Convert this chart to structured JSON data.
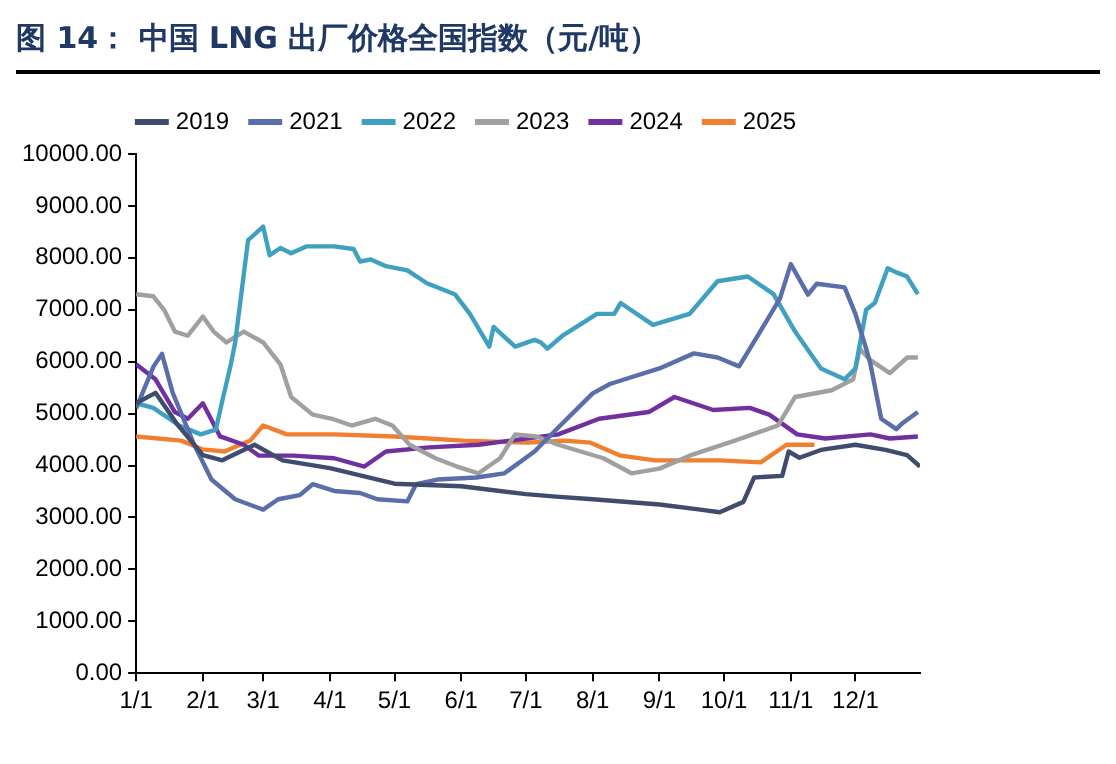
{
  "chart_data": {
    "type": "line",
    "title": "图 14：  中国 LNG 出厂价格全国指数（元/吨）",
    "xlim": [
      "--01-01",
      "--12-31"
    ],
    "xticks": [
      {
        "value": "--01-01",
        "label": "1/1"
      },
      {
        "value": "--02-01",
        "label": "2/1"
      },
      {
        "value": "--03-01",
        "label": "3/1"
      },
      {
        "value": "--04-01",
        "label": "4/1"
      },
      {
        "value": "--05-01",
        "label": "5/1"
      },
      {
        "value": "--06-01",
        "label": "6/1"
      },
      {
        "value": "--07-01",
        "label": "7/1"
      },
      {
        "value": "--08-01",
        "label": "8/1"
      },
      {
        "value": "--09-01",
        "label": "9/1"
      },
      {
        "value": "--10-01",
        "label": "10/1"
      },
      {
        "value": "--11-01",
        "label": "11/1"
      },
      {
        "value": "--12-01",
        "label": "12/1"
      }
    ],
    "ylim": [
      0,
      10000
    ],
    "yticks": [
      {
        "value": 0,
        "label": "0.00"
      },
      {
        "value": 1000,
        "label": "1000.00"
      },
      {
        "value": 2000,
        "label": "2000.00"
      },
      {
        "value": 3000,
        "label": "3000.00"
      },
      {
        "value": 4000,
        "label": "4000.00"
      },
      {
        "value": 5000,
        "label": "5000.00"
      },
      {
        "value": 6000,
        "label": "6000.00"
      },
      {
        "value": 7000,
        "label": "7000.00"
      },
      {
        "value": 8000,
        "label": "8000.00"
      },
      {
        "value": 9000,
        "label": "9000.00"
      },
      {
        "value": 10000,
        "label": "10000.00"
      }
    ],
    "grid": false,
    "legend": "top",
    "series": [
      {
        "name": "2019",
        "color": "#3f4c6e",
        "x": [
          "--01-01",
          "--01-10",
          "--01-20",
          "--02-01",
          "--02-10",
          "--02-25",
          "--03-10",
          "--04-01",
          "--05-01",
          "--06-01",
          "--07-01",
          "--07-15",
          "--08-01",
          "--09-01",
          "--09-20",
          "--09-29",
          "--10-10",
          "--10-15",
          "--10-28",
          "--10-31",
          "--11-05",
          "--11-15",
          "--12-01",
          "--12-15",
          "--12-25",
          "--12-31"
        ],
        "values": [
          5200,
          5400,
          4800,
          4200,
          4100,
          4400,
          4100,
          3950,
          3650,
          3600,
          3450,
          3400,
          3350,
          3250,
          3150,
          3100,
          3300,
          3770,
          3800,
          4270,
          4150,
          4300,
          4400,
          4300,
          4200,
          3980
        ]
      },
      {
        "name": "2021",
        "color": "#5a6eaa",
        "x": [
          "--01-01",
          "--01-05",
          "--01-09",
          "--01-13",
          "--01-18",
          "--01-28",
          "--02-05",
          "--02-16",
          "--03-01",
          "--03-08",
          "--03-18",
          "--03-24",
          "--04-03",
          "--04-15",
          "--04-23",
          "--05-07",
          "--05-11",
          "--05-21",
          "--06-08",
          "--06-21",
          "--07-05",
          "--07-15",
          "--08-01",
          "--08-09",
          "--09-01",
          "--09-17",
          "--09-28",
          "--10-08",
          "--10-13",
          "--10-21",
          "--10-27",
          "--11-01",
          "--11-09",
          "--11-13",
          "--11-26",
          "--12-01",
          "--12-06",
          "--12-08",
          "--12-13",
          "--12-20",
          "--12-23",
          "--12-30"
        ],
        "values": [
          5100,
          5500,
          5900,
          6150,
          5400,
          4400,
          3730,
          3350,
          3150,
          3350,
          3430,
          3640,
          3510,
          3470,
          3350,
          3310,
          3640,
          3730,
          3770,
          3850,
          4270,
          4690,
          5390,
          5570,
          5870,
          6160,
          6080,
          5910,
          6250,
          6800,
          7220,
          7880,
          7290,
          7500,
          7430,
          6920,
          6250,
          5950,
          4900,
          4700,
          4820,
          5030
        ]
      },
      {
        "name": "2022",
        "color": "#3fa0c0",
        "x": [
          "--01-01",
          "--01-09",
          "--01-21",
          "--01-31",
          "--02-07",
          "--02-10",
          "--02-14",
          "--02-16",
          "--02-22",
          "--03-01",
          "--03-04",
          "--03-09",
          "--03-14",
          "--03-21",
          "--04-03",
          "--04-12",
          "--04-15",
          "--04-20",
          "--04-27",
          "--05-07",
          "--05-16",
          "--05-29",
          "--06-05",
          "--06-14",
          "--06-16",
          "--06-26",
          "--07-05",
          "--07-08",
          "--07-11",
          "--07-18",
          "--07-21",
          "--08-03",
          "--08-11",
          "--08-14",
          "--08-29",
          "--09-15",
          "--09-28",
          "--10-12",
          "--10-24",
          "--11-03",
          "--11-15",
          "--11-26",
          "--12-01",
          "--12-06",
          "--12-10",
          "--12-16",
          "--12-20",
          "--12-25",
          "--12-30"
        ],
        "values": [
          5200,
          5110,
          4770,
          4600,
          4690,
          5240,
          5950,
          6370,
          8340,
          8600,
          8050,
          8190,
          8090,
          8220,
          8220,
          8170,
          7930,
          7970,
          7840,
          7760,
          7510,
          7300,
          6920,
          6290,
          6670,
          6290,
          6420,
          6370,
          6250,
          6500,
          6580,
          6920,
          6920,
          7130,
          6710,
          6920,
          7550,
          7640,
          7300,
          6580,
          5870,
          5660,
          5870,
          7000,
          7130,
          7800,
          7720,
          7640,
          7300
        ]
      },
      {
        "name": "2023",
        "color": "#a0a0a0",
        "x": [
          "--01-01",
          "--01-09",
          "--01-14",
          "--01-19",
          "--01-25",
          "--02-01",
          "--02-06",
          "--02-12",
          "--02-20",
          "--03-01",
          "--03-09",
          "--03-14",
          "--03-24",
          "--04-02",
          "--04-11",
          "--04-22",
          "--04-30",
          "--05-08",
          "--05-20",
          "--05-30",
          "--06-09",
          "--06-19",
          "--06-26",
          "--07-06",
          "--07-16",
          "--08-06",
          "--08-19",
          "--09-01",
          "--09-15",
          "--10-06",
          "--10-26",
          "--11-03",
          "--11-20",
          "--11-30",
          "--12-03",
          "--12-08",
          "--12-17",
          "--12-25",
          "--12-30"
        ],
        "values": [
          7300,
          7260,
          7000,
          6580,
          6500,
          6870,
          6580,
          6370,
          6580,
          6370,
          5950,
          5320,
          4980,
          4900,
          4770,
          4900,
          4770,
          4400,
          4140,
          3980,
          3850,
          4140,
          4600,
          4560,
          4400,
          4140,
          3850,
          3940,
          4190,
          4480,
          4770,
          5320,
          5450,
          5660,
          6250,
          6030,
          5780,
          6080,
          6080
        ]
      },
      {
        "name": "2024",
        "color": "#7030a0",
        "x": [
          "--01-01",
          "--01-10",
          "--01-19",
          "--01-25",
          "--02-01",
          "--02-09",
          "--02-20",
          "--02-27",
          "--03-15",
          "--04-03",
          "--04-17",
          "--04-27",
          "--05-17",
          "--06-09",
          "--07-16",
          "--08-04",
          "--08-27",
          "--09-08",
          "--09-26",
          "--10-13",
          "--10-22",
          "--11-04",
          "--11-17",
          "--12-08",
          "--12-17",
          "--12-30"
        ],
        "values": [
          5950,
          5660,
          5030,
          4900,
          5200,
          4560,
          4400,
          4190,
          4190,
          4140,
          3980,
          4270,
          4350,
          4400,
          4600,
          4900,
          5030,
          5320,
          5070,
          5110,
          4980,
          4600,
          4520,
          4600,
          4520,
          4560
        ]
      },
      {
        "name": "2025",
        "color": "#f08030",
        "x": [
          "--01-01",
          "--01-22",
          "--02-01",
          "--02-11",
          "--02-23",
          "--03-01",
          "--03-12",
          "--04-03",
          "--05-01",
          "--06-02",
          "--07-02",
          "--07-19",
          "--07-31",
          "--08-14",
          "--08-30",
          "--09-29",
          "--10-18",
          "--10-30",
          "--11-12"
        ],
        "values": [
          4560,
          4480,
          4310,
          4270,
          4480,
          4770,
          4600,
          4600,
          4560,
          4480,
          4440,
          4480,
          4440,
          4190,
          4100,
          4100,
          4060,
          4400,
          4400
        ]
      }
    ]
  }
}
